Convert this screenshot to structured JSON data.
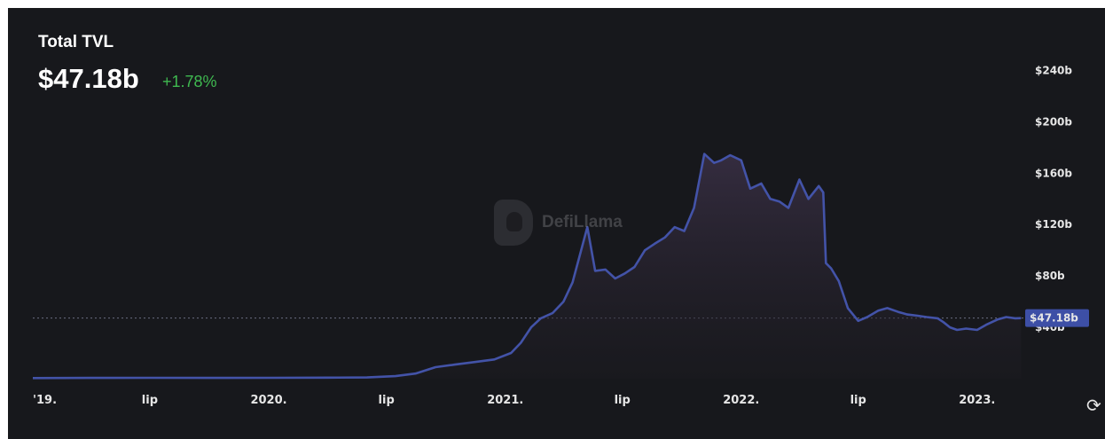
{
  "header": {
    "title": "Total TVL",
    "value": "$47.18b",
    "change": "+1.78%"
  },
  "watermark": {
    "text": "DefiLlama"
  },
  "reload_icon": "refresh-icon",
  "colors": {
    "background": "#17181c",
    "line": "#4353a8",
    "positive": "#3fb950",
    "price_label_bg": "#3d4fa6"
  },
  "chart_data": {
    "type": "area",
    "title": "Total TVL",
    "xlabel": "",
    "ylabel": "",
    "ylim": [
      0,
      270
    ],
    "y_unit": "billion USD",
    "y_tick_values": [
      40,
      80,
      120,
      160,
      200,
      240
    ],
    "y_tick_labels": [
      "$40b",
      "$80b",
      "$120b",
      "$160b",
      "$200b",
      "$240b"
    ],
    "x_tick_labels": [
      "'19.",
      "lip",
      "2020.",
      "lip",
      "2021.",
      "lip",
      "2022.",
      "lip",
      "2023."
    ],
    "x_tick_dates": [
      "2019-01-01",
      "2019-07-01",
      "2020-01-01",
      "2020-07-01",
      "2021-01-01",
      "2021-07-01",
      "2022-01-01",
      "2022-07-01",
      "2023-01-01"
    ],
    "x_range": [
      "2019-01-01",
      "2023-03-15"
    ],
    "grid": false,
    "current_value": 47.18,
    "current_label": "$47.18b",
    "series": [
      {
        "x": [
          "2019-01-01",
          "2019-04-01",
          "2019-07-01",
          "2019-10-01",
          "2020-01-01",
          "2020-04-01",
          "2020-06-01",
          "2020-07-15",
          "2020-08-15",
          "2020-09-15",
          "2020-10-15",
          "2020-11-15",
          "2020-12-15",
          "2021-01-10",
          "2021-01-25",
          "2021-02-10",
          "2021-02-25",
          "2021-03-15",
          "2021-04-01",
          "2021-04-15",
          "2021-05-08",
          "2021-05-20",
          "2021-06-05",
          "2021-06-20",
          "2021-07-05",
          "2021-07-20",
          "2021-08-05",
          "2021-08-20",
          "2021-09-05",
          "2021-09-20",
          "2021-10-05",
          "2021-10-20",
          "2021-11-05",
          "2021-11-20",
          "2021-12-01",
          "2021-12-15",
          "2022-01-01",
          "2022-01-15",
          "2022-02-01",
          "2022-02-15",
          "2022-03-01",
          "2022-03-15",
          "2022-04-01",
          "2022-04-15",
          "2022-05-01",
          "2022-05-08",
          "2022-05-12",
          "2022-05-20",
          "2022-06-01",
          "2022-06-15",
          "2022-07-01",
          "2022-07-15",
          "2022-08-01",
          "2022-08-15",
          "2022-09-01",
          "2022-09-15",
          "2022-10-01",
          "2022-10-15",
          "2022-11-01",
          "2022-11-10",
          "2022-11-20",
          "2022-12-01",
          "2022-12-15",
          "2023-01-01",
          "2023-01-15",
          "2023-02-01",
          "2023-02-15",
          "2023-03-01",
          "2023-03-10"
        ],
        "y": [
          0.5,
          0.6,
          0.7,
          0.6,
          0.7,
          0.8,
          1.0,
          2.0,
          4.0,
          9.0,
          11.0,
          13.0,
          15.0,
          20.0,
          28.0,
          40.0,
          47.0,
          51.0,
          60.0,
          75.0,
          118.0,
          84.0,
          85.0,
          78.0,
          82.0,
          87.0,
          100.0,
          105.0,
          110.0,
          118.0,
          115.0,
          133.0,
          175.0,
          168.0,
          170.0,
          174.0,
          170.0,
          148.0,
          152.0,
          140.0,
          138.0,
          133.0,
          155.0,
          140.0,
          150.0,
          145.0,
          90.0,
          86.0,
          76.0,
          55.0,
          45.0,
          48.0,
          53.0,
          55.0,
          52.0,
          50.0,
          49.0,
          48.0,
          47.0,
          44.0,
          40.0,
          38.0,
          39.0,
          38.0,
          42.0,
          46.0,
          48.0,
          47.0,
          47.18
        ]
      }
    ]
  }
}
